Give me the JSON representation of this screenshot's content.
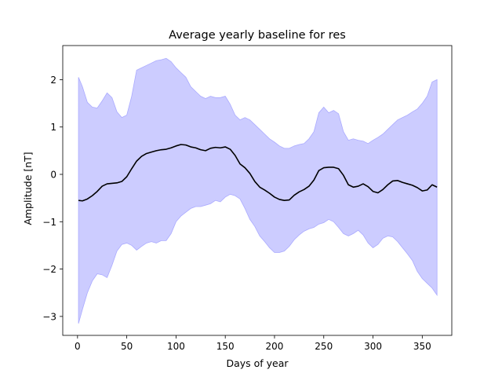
{
  "chart_data": {
    "type": "area",
    "title": "Average yearly baseline for res",
    "xlabel": "Days of year",
    "ylabel": "Amplitude [nT]",
    "xlim": [
      -15,
      380
    ],
    "ylim": [
      -3.4,
      2.72
    ],
    "xticks": [
      0,
      50,
      100,
      150,
      200,
      250,
      300,
      350
    ],
    "yticks": [
      -3,
      -2,
      -1,
      0,
      1,
      2
    ],
    "grid": false,
    "colors": {
      "mean_line": "#000000",
      "band_fill": "#ccccff",
      "band_edge": "#aaaaff"
    },
    "series": [
      {
        "role": "mean",
        "x": [
          1,
          5,
          10,
          15,
          20,
          25,
          30,
          35,
          40,
          45,
          50,
          55,
          60,
          65,
          70,
          75,
          80,
          85,
          90,
          95,
          100,
          105,
          110,
          115,
          120,
          125,
          130,
          135,
          140,
          145,
          150,
          155,
          160,
          165,
          170,
          175,
          180,
          185,
          190,
          195,
          200,
          205,
          210,
          215,
          220,
          225,
          230,
          235,
          240,
          245,
          250,
          255,
          260,
          265,
          270,
          275,
          280,
          285,
          290,
          295,
          300,
          305,
          310,
          315,
          320,
          325,
          330,
          335,
          340,
          345,
          350,
          355,
          360,
          365
        ],
        "y": [
          -0.55,
          -0.56,
          -0.52,
          -0.45,
          -0.36,
          -0.25,
          -0.2,
          -0.19,
          -0.18,
          -0.15,
          -0.05,
          0.12,
          0.28,
          0.38,
          0.44,
          0.47,
          0.5,
          0.52,
          0.53,
          0.56,
          0.6,
          0.63,
          0.62,
          0.58,
          0.56,
          0.52,
          0.5,
          0.55,
          0.57,
          0.56,
          0.58,
          0.53,
          0.4,
          0.22,
          0.14,
          0.02,
          -0.15,
          -0.27,
          -0.33,
          -0.4,
          -0.48,
          -0.53,
          -0.55,
          -0.54,
          -0.44,
          -0.37,
          -0.32,
          -0.25,
          -0.12,
          0.08,
          0.14,
          0.15,
          0.15,
          0.12,
          -0.02,
          -0.22,
          -0.27,
          -0.25,
          -0.2,
          -0.26,
          -0.36,
          -0.39,
          -0.32,
          -0.22,
          -0.14,
          -0.13,
          -0.17,
          -0.2,
          -0.23,
          -0.28,
          -0.35,
          -0.33,
          -0.22,
          -0.27
        ]
      },
      {
        "role": "upper",
        "x": [
          1,
          5,
          10,
          15,
          20,
          25,
          30,
          35,
          40,
          45,
          50,
          55,
          60,
          65,
          70,
          75,
          80,
          85,
          90,
          95,
          100,
          105,
          110,
          115,
          120,
          125,
          130,
          135,
          140,
          145,
          150,
          155,
          160,
          165,
          170,
          175,
          180,
          185,
          190,
          195,
          200,
          205,
          210,
          215,
          220,
          225,
          230,
          235,
          240,
          245,
          250,
          255,
          260,
          265,
          270,
          275,
          280,
          285,
          290,
          295,
          300,
          305,
          310,
          315,
          320,
          325,
          330,
          335,
          340,
          345,
          350,
          355,
          360,
          365
        ],
        "y": [
          2.05,
          1.85,
          1.52,
          1.42,
          1.4,
          1.55,
          1.72,
          1.62,
          1.32,
          1.2,
          1.25,
          1.65,
          2.2,
          2.25,
          2.3,
          2.35,
          2.4,
          2.42,
          2.45,
          2.38,
          2.25,
          2.15,
          2.05,
          1.85,
          1.75,
          1.65,
          1.6,
          1.65,
          1.62,
          1.62,
          1.65,
          1.48,
          1.25,
          1.15,
          1.2,
          1.15,
          1.05,
          0.95,
          0.85,
          0.75,
          0.68,
          0.6,
          0.55,
          0.55,
          0.6,
          0.63,
          0.65,
          0.75,
          0.9,
          1.3,
          1.42,
          1.3,
          1.35,
          1.28,
          0.9,
          0.72,
          0.75,
          0.72,
          0.7,
          0.65,
          0.72,
          0.78,
          0.85,
          0.95,
          1.05,
          1.15,
          1.2,
          1.25,
          1.32,
          1.38,
          1.5,
          1.65,
          1.95,
          2.0
        ]
      },
      {
        "role": "lower",
        "x": [
          1,
          5,
          10,
          15,
          20,
          25,
          30,
          35,
          40,
          45,
          50,
          55,
          60,
          65,
          70,
          75,
          80,
          85,
          90,
          95,
          100,
          105,
          110,
          115,
          120,
          125,
          130,
          135,
          140,
          145,
          150,
          155,
          160,
          165,
          170,
          175,
          180,
          185,
          190,
          195,
          200,
          205,
          210,
          215,
          220,
          225,
          230,
          235,
          240,
          245,
          250,
          255,
          260,
          265,
          270,
          275,
          280,
          285,
          290,
          295,
          300,
          305,
          310,
          315,
          320,
          325,
          330,
          335,
          340,
          345,
          350,
          355,
          360,
          365
        ],
        "y": [
          -3.15,
          -2.85,
          -2.5,
          -2.25,
          -2.1,
          -2.12,
          -2.18,
          -1.92,
          -1.62,
          -1.48,
          -1.45,
          -1.5,
          -1.6,
          -1.52,
          -1.45,
          -1.42,
          -1.45,
          -1.4,
          -1.4,
          -1.25,
          -1.0,
          -0.88,
          -0.8,
          -0.72,
          -0.68,
          -0.68,
          -0.65,
          -0.62,
          -0.55,
          -0.58,
          -0.48,
          -0.42,
          -0.45,
          -0.52,
          -0.72,
          -0.95,
          -1.1,
          -1.3,
          -1.42,
          -1.55,
          -1.65,
          -1.65,
          -1.62,
          -1.52,
          -1.38,
          -1.28,
          -1.2,
          -1.15,
          -1.12,
          -1.05,
          -1.02,
          -0.95,
          -1.0,
          -1.12,
          -1.25,
          -1.3,
          -1.25,
          -1.18,
          -1.28,
          -1.45,
          -1.55,
          -1.48,
          -1.35,
          -1.3,
          -1.32,
          -1.42,
          -1.55,
          -1.68,
          -1.82,
          -2.05,
          -2.2,
          -2.3,
          -2.4,
          -2.55
        ]
      }
    ]
  }
}
